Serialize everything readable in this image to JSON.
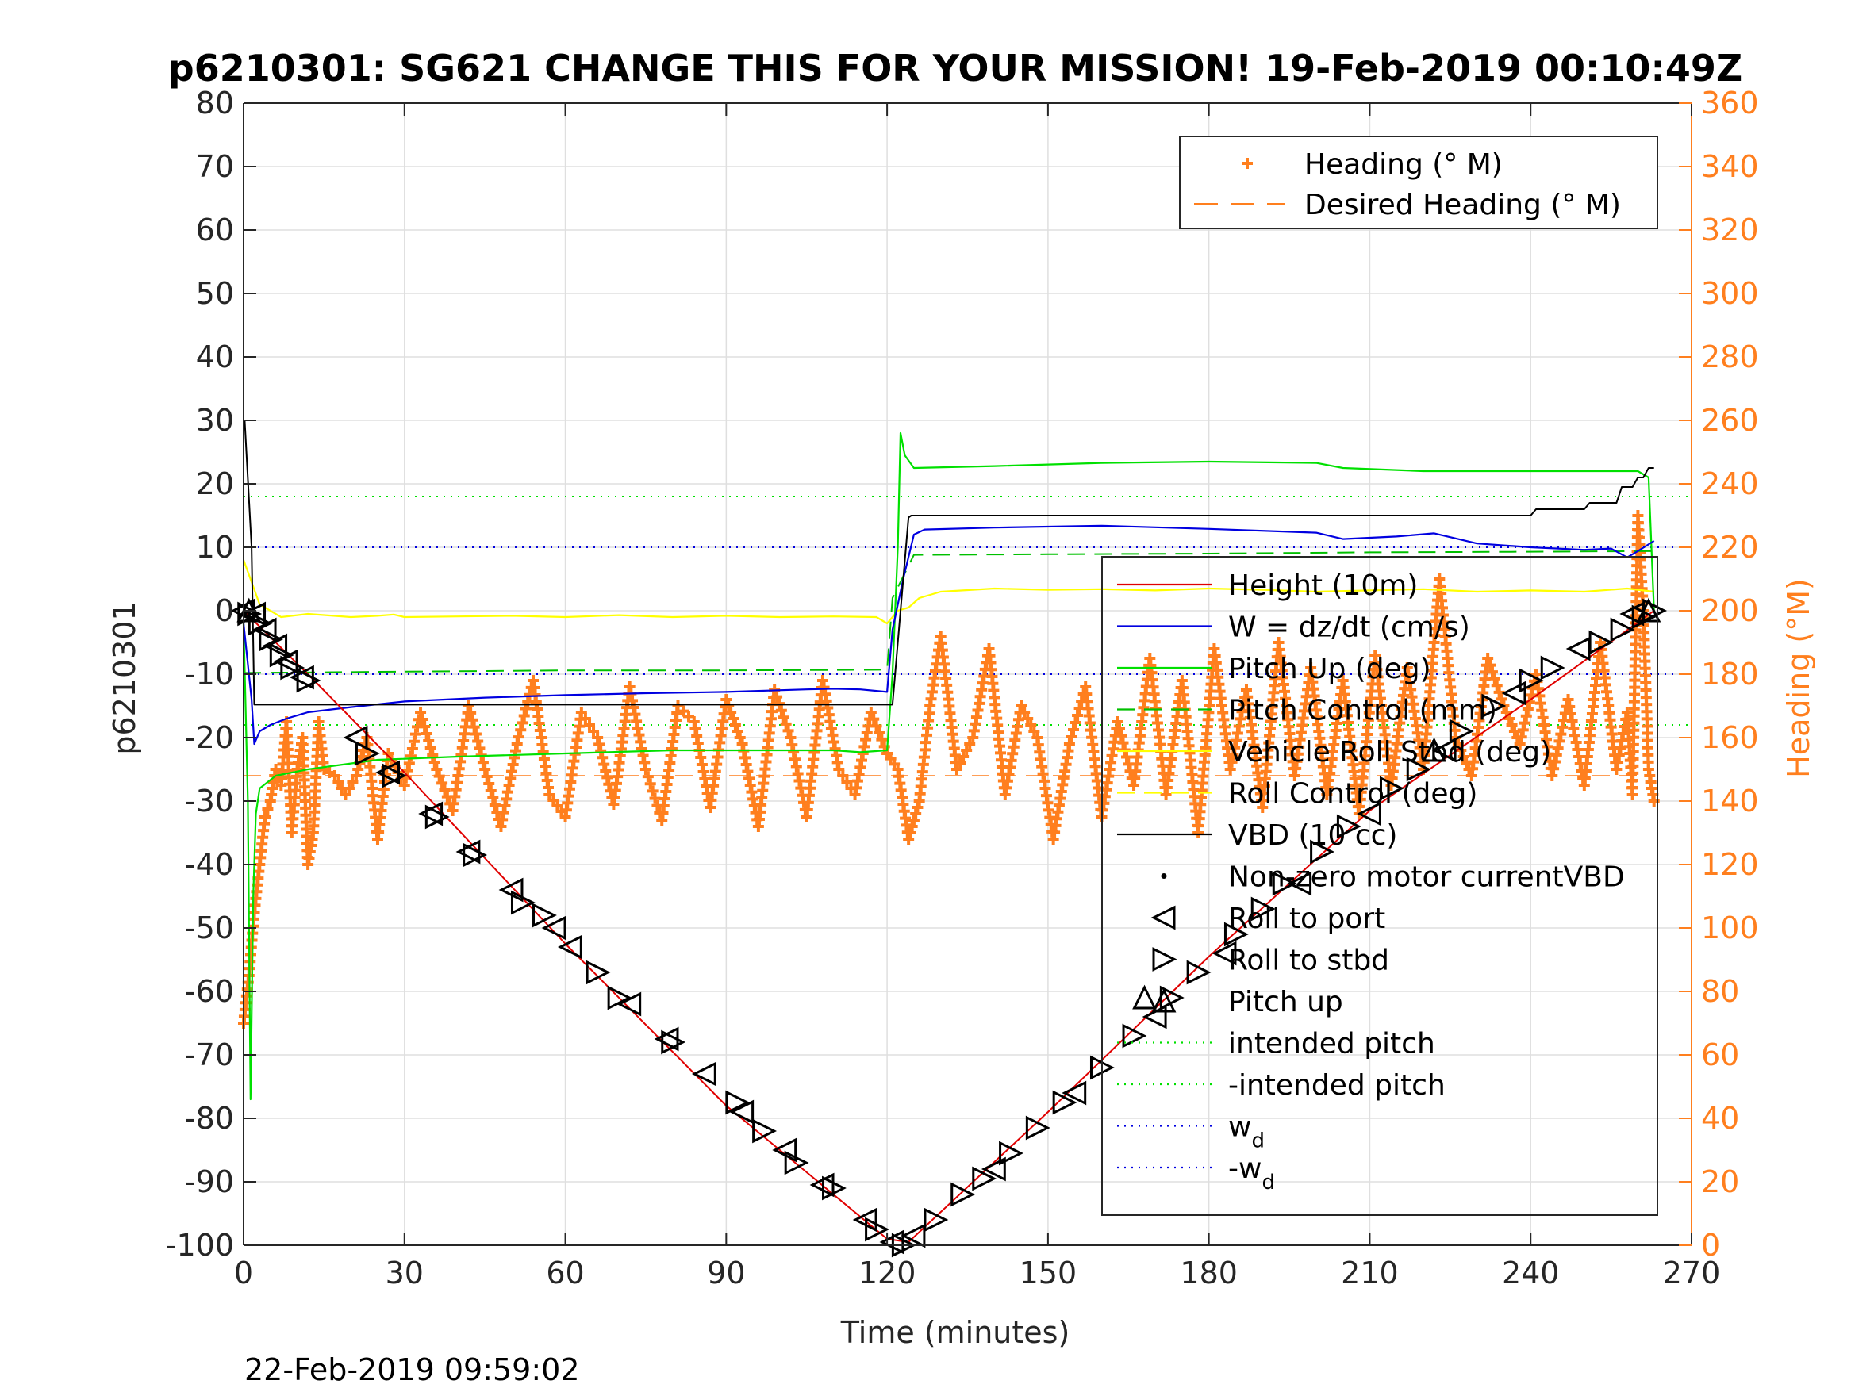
{
  "chart_data": {
    "type": "line",
    "title": "p6210301: SG621 CHANGE THIS FOR YOUR MISSION! 19-Feb-2019 00:10:49Z",
    "xlabel": "Time (minutes)",
    "ylabel": "p6210301",
    "y2label": "Heading (°M)",
    "footer": "22-Feb-2019 09:59:02",
    "xlim": [
      0,
      270
    ],
    "ylim": [
      -100,
      80
    ],
    "y2lim": [
      0,
      360
    ],
    "grid": true,
    "xticks": [
      0,
      30,
      60,
      90,
      120,
      150,
      180,
      210,
      240,
      270
    ],
    "yticks": [
      -100,
      -90,
      -80,
      -70,
      -60,
      -50,
      -40,
      -30,
      -20,
      -10,
      0,
      10,
      20,
      30,
      40,
      50,
      60,
      70,
      80
    ],
    "y2ticks": [
      0,
      20,
      40,
      60,
      80,
      100,
      120,
      140,
      160,
      180,
      200,
      220,
      240,
      260,
      280,
      300,
      320,
      340,
      360
    ],
    "colors": {
      "height": "#e00000",
      "w": "#0000e0",
      "pitch": "#00e000",
      "pitch_control": "#00c000",
      "roll": "#ffff00",
      "vbd": "#000000",
      "heading": "#ff7f1e",
      "axis": "#262626",
      "right_axis": "#ff7f1e",
      "grid": "#dfdfdf"
    },
    "legend_heading": {
      "position": "top-right",
      "entries": [
        "Heading (° M)",
        "Desired Heading (° M)"
      ]
    },
    "legend_main": {
      "position": "right",
      "entries": [
        {
          "label": "Height (10m)",
          "sym": "line",
          "color": "#e00000",
          "dash": ""
        },
        {
          "label": "W = dz/dt (cm/s)",
          "sym": "line",
          "color": "#0000e0",
          "dash": ""
        },
        {
          "label": "Pitch Up (deg)",
          "sym": "line",
          "color": "#00e000",
          "dash": ""
        },
        {
          "label": "Pitch Control (mm)",
          "sym": "line",
          "color": "#00c000",
          "dash": "22 12"
        },
        {
          "label": "Vehicle Roll Stbd (deg)",
          "sym": "line",
          "color": "#ffff00",
          "dash": ""
        },
        {
          "label": "Roll Control (deg)",
          "sym": "line",
          "color": "#ffff00",
          "dash": "22 12"
        },
        {
          "label": "VBD (10 cc)",
          "sym": "line",
          "color": "#000000",
          "dash": ""
        },
        {
          "label": "Non-zero motor currentVBD",
          "sym": "dot",
          "color": "#000000",
          "dash": ""
        },
        {
          "label": "Roll to port",
          "sym": "tri-left",
          "color": "#000000",
          "dash": ""
        },
        {
          "label": "Roll to stbd",
          "sym": "tri-right",
          "color": "#000000",
          "dash": ""
        },
        {
          "label": "Pitch up",
          "sym": "tri-up",
          "color": "#000000",
          "dash": ""
        },
        {
          "label": "intended pitch",
          "sym": "line",
          "color": "#00e000",
          "dash": "2 7"
        },
        {
          "label": "-intended pitch",
          "sym": "line",
          "color": "#00e000",
          "dash": "2 7"
        },
        {
          "label": "w",
          "sub": "d",
          "sym": "line",
          "color": "#0000e0",
          "dash": "2 7"
        },
        {
          "label": "-w",
          "sub": "d",
          "sym": "line",
          "color": "#0000e0",
          "dash": "2 7"
        }
      ]
    },
    "reference_lines": {
      "intended_pitch": [
        18,
        -18
      ],
      "w_d": [
        10,
        -10
      ]
    },
    "series": [
      {
        "name": "Height (10m)",
        "color": "#e00000",
        "x": [
          0,
          12,
          30,
          60,
          90,
          120,
          124,
          150,
          180,
          210,
          240,
          263
        ],
        "y": [
          0,
          -10,
          -25.5,
          -52.5,
          -78,
          -99,
          -99.5,
          -79,
          -54.5,
          -31.5,
          -14,
          0
        ]
      },
      {
        "name": "W = dz/dt (cm/s)",
        "color": "#0000e0",
        "x": [
          0,
          1.5,
          2,
          3,
          5,
          8,
          12,
          20,
          30,
          45,
          60,
          75,
          90,
          105,
          110,
          115,
          120,
          121,
          123,
          125,
          127,
          140,
          160,
          180,
          200,
          205,
          215,
          222,
          230,
          240,
          250,
          255,
          258,
          260,
          263
        ],
        "y": [
          -2,
          -14,
          -21,
          -19,
          -18,
          -17,
          -16,
          -15.2,
          -14.3,
          -13.7,
          -13.3,
          -13,
          -12.8,
          -12.4,
          -12.3,
          -12.4,
          -12.8,
          -3,
          5,
          12,
          12.8,
          13.1,
          13.4,
          12.9,
          12.3,
          11.3,
          11.7,
          12.2,
          10.6,
          10,
          9.6,
          9.8,
          8.4,
          9.4,
          11
        ]
      },
      {
        "name": "Pitch Up (deg)",
        "color": "#00e000",
        "x": [
          0,
          0.8,
          1.3,
          1.8,
          2.3,
          3,
          6,
          12,
          25,
          40,
          60,
          80,
          100,
          110,
          115,
          120,
          121,
          122,
          122.5,
          123.3,
          125,
          140,
          160,
          180,
          200,
          205,
          220,
          240,
          255,
          260,
          262,
          263
        ],
        "y": [
          -2,
          -30,
          -77,
          -45,
          -32,
          -28,
          -26,
          -25,
          -23.5,
          -23,
          -22.5,
          -22,
          -22,
          -22,
          -22.3,
          -22,
          -10,
          10,
          28,
          24.5,
          22.5,
          22.8,
          23.3,
          23.5,
          23.3,
          22.5,
          22,
          22,
          22,
          22,
          21,
          0
        ]
      },
      {
        "name": "Pitch Control (mm)",
        "color": "#00c000",
        "dash": "22 12",
        "x": [
          0,
          30,
          60,
          90,
          120,
          121,
          125,
          150,
          180,
          210,
          240,
          263
        ],
        "y": [
          -9.8,
          -9.6,
          -9.4,
          -9.4,
          -9.3,
          2,
          8.8,
          8.9,
          9,
          9.2,
          9.3,
          9.4
        ]
      },
      {
        "name": "Vehicle Roll Stbd (deg)",
        "color": "#ffff00",
        "x": [
          0,
          3,
          7,
          12,
          20,
          25,
          28,
          30,
          40,
          50,
          60,
          70,
          80,
          90,
          100,
          110,
          118,
          120,
          122,
          124,
          126,
          130,
          140,
          150,
          160,
          170,
          180,
          190,
          200,
          210,
          220,
          230,
          240,
          250,
          258,
          263
        ],
        "y": [
          8,
          1,
          -1,
          -0.5,
          -1,
          -0.8,
          -0.6,
          -1,
          -0.9,
          -0.8,
          -1,
          -0.7,
          -1,
          -0.8,
          -1,
          -0.9,
          -1,
          -2,
          0,
          0.5,
          2,
          3,
          3.5,
          3.3,
          3.4,
          3.2,
          3.5,
          3.3,
          3,
          3.2,
          3.4,
          3,
          3.2,
          3,
          3.5,
          3
        ]
      },
      {
        "name": "VBD (10 cc)",
        "color": "#000000",
        "x": [
          0,
          0.2,
          1.5,
          2,
          120,
          121,
          124,
          124.5,
          150,
          180,
          200,
          220,
          240,
          241,
          250,
          251,
          256,
          257,
          259,
          260,
          261,
          262,
          263
        ],
        "y": [
          30,
          30,
          10,
          -14.8,
          -14.8,
          -14.8,
          14.7,
          15,
          15,
          15,
          15,
          15,
          15,
          16,
          16,
          17,
          17,
          19.5,
          19.5,
          21,
          21,
          22.5,
          22.5
        ]
      },
      {
        "name": "Heading (° M)",
        "color": "#ff7f1e",
        "axis": "right",
        "x": [
          0,
          1,
          2,
          3,
          4,
          5,
          6,
          7,
          8,
          9,
          10,
          11,
          12,
          13,
          14,
          15,
          17,
          19,
          21,
          23,
          25,
          27,
          30,
          33,
          36,
          39,
          42,
          45,
          48,
          51,
          54,
          57,
          60,
          63,
          66,
          69,
          72,
          75,
          78,
          81,
          84,
          87,
          90,
          93,
          96,
          99,
          102,
          105,
          108,
          111,
          114,
          117,
          120,
          122,
          124,
          126,
          128,
          130,
          133,
          136,
          139,
          142,
          145,
          148,
          151,
          154,
          157,
          160,
          163,
          166,
          169,
          172,
          175,
          178,
          181,
          184,
          187,
          190,
          193,
          196,
          199,
          202,
          205,
          208,
          211,
          214,
          217,
          220,
          223,
          226,
          229,
          232,
          235,
          238,
          241,
          244,
          247,
          250,
          253,
          256,
          258,
          259,
          260,
          261,
          262,
          263
        ],
        "y": [
          70,
          85,
          105,
          120,
          135,
          140,
          150,
          145,
          165,
          130,
          150,
          160,
          120,
          130,
          165,
          150,
          148,
          142,
          148,
          160,
          128,
          155,
          145,
          168,
          150,
          137,
          170,
          150,
          132,
          158,
          178,
          142,
          135,
          168,
          160,
          139,
          176,
          150,
          134,
          170,
          165,
          138,
          172,
          158,
          132,
          175,
          160,
          135,
          178,
          150,
          142,
          168,
          155,
          150,
          128,
          140,
          170,
          192,
          150,
          160,
          188,
          142,
          170,
          160,
          128,
          158,
          176,
          135,
          165,
          145,
          185,
          142,
          178,
          130,
          188,
          150,
          175,
          138,
          190,
          148,
          182,
          142,
          178,
          136,
          186,
          145,
          182,
          150,
          210,
          160,
          148,
          185,
          170,
          158,
          180,
          148,
          172,
          145,
          190,
          150,
          168,
          142,
          230,
          200,
          150,
          140
        ]
      },
      {
        "name": "Desired Heading (° M)",
        "color": "#ff7f1e",
        "axis": "right",
        "dash": "22 12",
        "x": [
          0,
          263
        ],
        "y": [
          148,
          148
        ]
      }
    ],
    "markers": {
      "roll_to_port": [
        [
          0,
          0
        ],
        [
          2,
          -0.5
        ],
        [
          4,
          -3
        ],
        [
          6,
          -5.5
        ],
        [
          8,
          -8
        ],
        [
          11,
          -10.5
        ],
        [
          21,
          -20
        ],
        [
          27,
          -25.5
        ],
        [
          35,
          -32
        ],
        [
          42,
          -38
        ],
        [
          50,
          -44
        ],
        [
          58,
          -50
        ],
        [
          61,
          -53
        ],
        [
          72,
          -62
        ],
        [
          79,
          -67.5
        ],
        [
          86,
          -73
        ],
        [
          93,
          -79
        ],
        [
          101,
          -85
        ],
        [
          108,
          -90.5
        ],
        [
          116,
          -96
        ],
        [
          121,
          -99.5
        ],
        [
          125,
          -98.5
        ],
        [
          140,
          -88
        ],
        [
          155,
          -76
        ],
        [
          170,
          -64
        ],
        [
          183,
          -54
        ],
        [
          197,
          -43
        ],
        [
          210,
          -32
        ],
        [
          224,
          -22
        ],
        [
          237,
          -13
        ],
        [
          249,
          -6
        ],
        [
          259,
          -0.5
        ]
      ],
      "roll_to_stbd": [
        [
          1,
          -0.5
        ],
        [
          3,
          -2
        ],
        [
          5,
          -4.5
        ],
        [
          7,
          -7
        ],
        [
          9,
          -9
        ],
        [
          12,
          -11
        ],
        [
          23,
          -22.5
        ],
        [
          28,
          -26
        ],
        [
          36,
          -32.5
        ],
        [
          43,
          -38.5
        ],
        [
          52,
          -46
        ],
        [
          56,
          -48
        ],
        [
          66,
          -57
        ],
        [
          70,
          -61
        ],
        [
          80,
          -68
        ],
        [
          92,
          -77.5
        ],
        [
          97,
          -82
        ],
        [
          103,
          -87
        ],
        [
          110,
          -91
        ],
        [
          118,
          -97.5
        ],
        [
          123,
          -100
        ],
        [
          129,
          -96
        ],
        [
          134,
          -92
        ],
        [
          138,
          -89.5
        ],
        [
          143,
          -85.5
        ],
        [
          148,
          -81.5
        ],
        [
          153,
          -77.5
        ],
        [
          160,
          -72
        ],
        [
          166,
          -67
        ],
        [
          173,
          -61
        ],
        [
          178,
          -57
        ],
        [
          185,
          -51
        ],
        [
          190,
          -47
        ],
        [
          194,
          -43
        ],
        [
          201,
          -38
        ],
        [
          206,
          -34
        ],
        [
          214,
          -28
        ],
        [
          219,
          -25
        ],
        [
          227,
          -19
        ],
        [
          233,
          -15
        ],
        [
          240,
          -11
        ],
        [
          244,
          -9
        ],
        [
          253,
          -5
        ],
        [
          257,
          -3
        ],
        [
          261,
          -1
        ],
        [
          263,
          0
        ]
      ],
      "pitch_up": [
        [
          1,
          0
        ],
        [
          168,
          -61
        ],
        [
          222,
          -22
        ],
        [
          262,
          0
        ]
      ]
    }
  }
}
